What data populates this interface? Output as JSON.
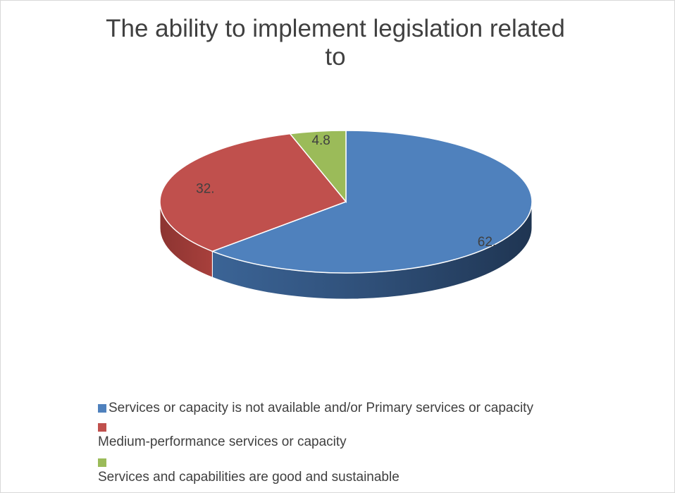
{
  "chart_data": {
    "type": "pie",
    "title": "The ability to implement legislation related to",
    "categories": [
      "Services or capacity is not available and/or Primary services or capacity",
      "Medium-performance services or capacity",
      "Services and capabilities are good and sustainable"
    ],
    "values": [
      62,
      32,
      4.8
    ],
    "data_labels": [
      "62.",
      "32.",
      "4.8"
    ],
    "colors": [
      "#4f81bd",
      "#c0504d",
      "#9bbb59"
    ],
    "legend_position": "bottom",
    "three_d": true
  }
}
